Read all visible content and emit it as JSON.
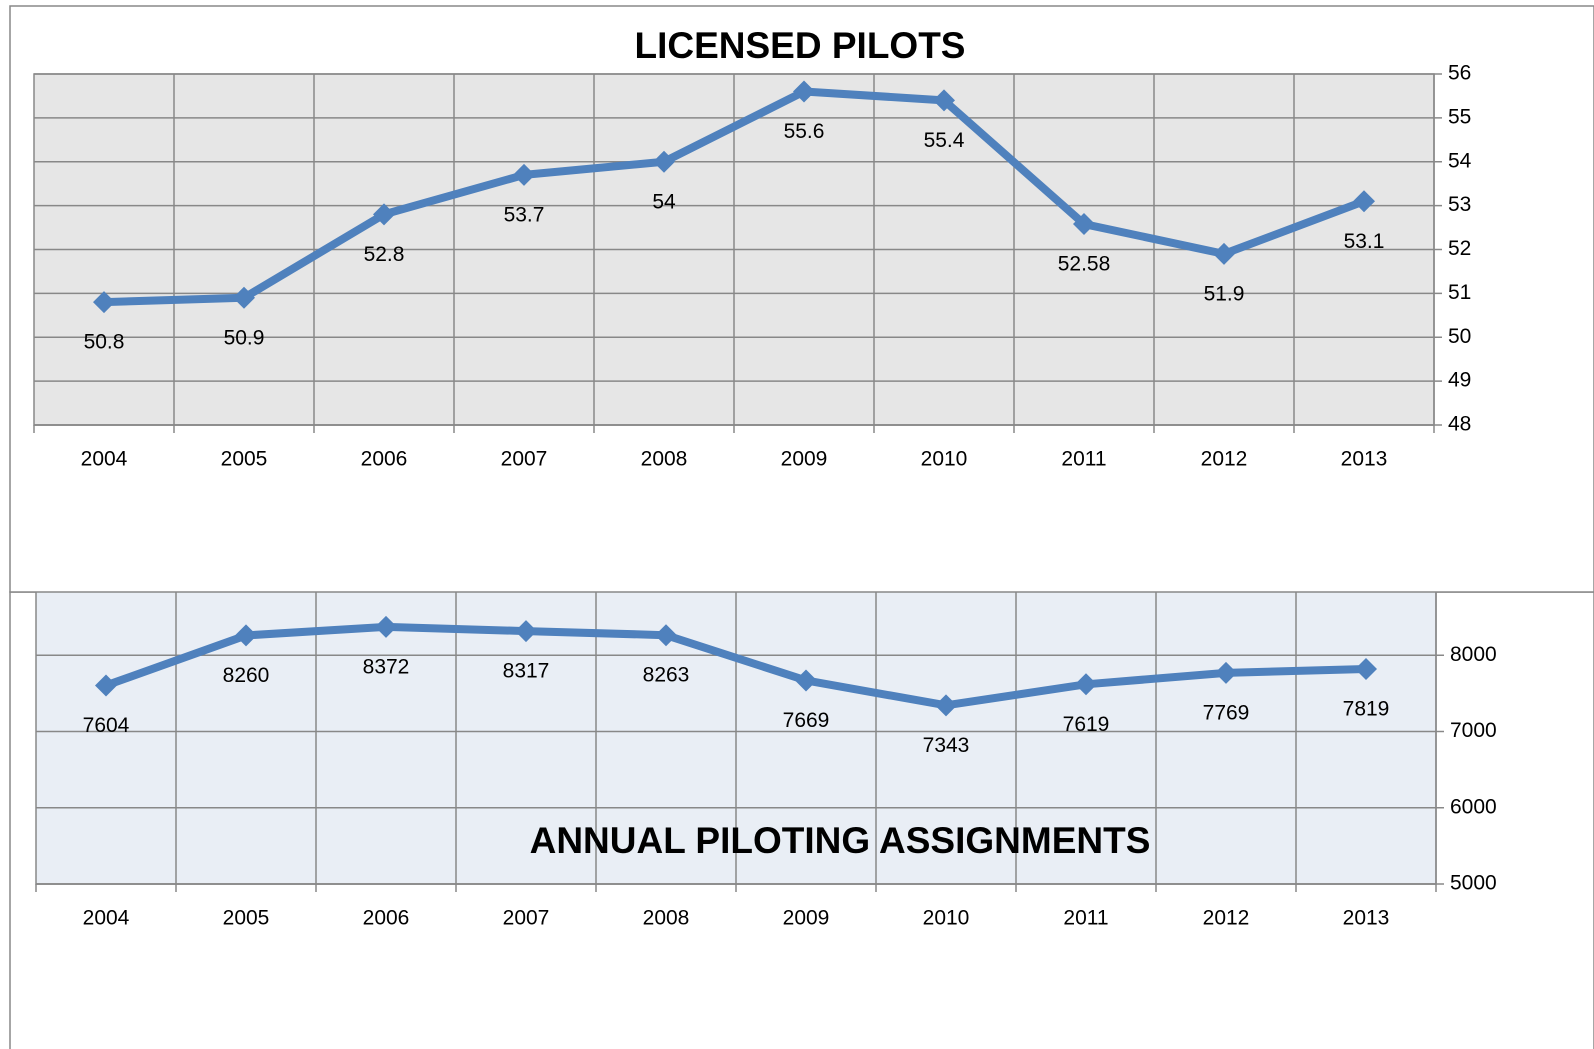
{
  "chart_data": [
    {
      "type": "line",
      "title": "LICENSED PILOTS",
      "categories": [
        "2004",
        "2005",
        "2006",
        "2007",
        "2008",
        "2009",
        "2010",
        "2011",
        "2012",
        "2013"
      ],
      "values": [
        50.8,
        50.9,
        52.8,
        53.7,
        54,
        55.6,
        55.4,
        52.58,
        51.9,
        53.1
      ],
      "color": "#4f81bd",
      "ylim": [
        48,
        56
      ],
      "yticks": [
        48,
        49,
        50,
        51,
        52,
        53,
        54,
        55,
        56
      ],
      "grid": true
    },
    {
      "type": "line",
      "title": "ANNUAL PILOTING ASSIGNMENTS",
      "categories": [
        "2004",
        "2005",
        "2006",
        "2007",
        "2008",
        "2009",
        "2010",
        "2011",
        "2012",
        "2013"
      ],
      "values": [
        7604,
        8260,
        8372,
        8317,
        8263,
        7669,
        7343,
        7619,
        7769,
        7819
      ],
      "color": "#4f81bd",
      "ylim": [
        5000,
        9000
      ],
      "yticks": [
        5000,
        6000,
        7000,
        8000
      ],
      "grid": true
    }
  ]
}
